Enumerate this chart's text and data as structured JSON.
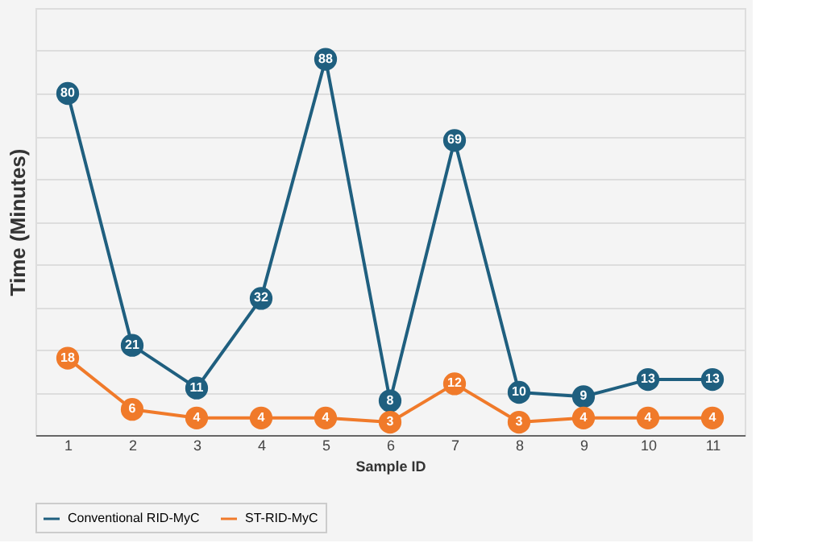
{
  "chart_data": {
    "type": "line",
    "xlabel": "Sample ID",
    "ylabel": "Time (Minutes)",
    "categories": [
      "1",
      "2",
      "3",
      "4",
      "5",
      "6",
      "7",
      "8",
      "9",
      "10",
      "11"
    ],
    "series": [
      {
        "name": "Conventional RID-MyC",
        "color": "#1f5f7f",
        "values": [
          80,
          21,
          11,
          32,
          88,
          8,
          69,
          10,
          9,
          13,
          13
        ]
      },
      {
        "name": "ST-RID-MyC",
        "color": "#f07a2a",
        "values": [
          18,
          6,
          4,
          4,
          4,
          3,
          12,
          3,
          4,
          4,
          4
        ]
      }
    ],
    "ylim": [
      0,
      100
    ],
    "yticks": [
      {
        "value": 0,
        "label": null
      },
      {
        "value": 10,
        "label": null
      },
      {
        "value": 20,
        "label": null
      },
      {
        "value": 30,
        "label": null
      },
      {
        "value": 40,
        "label": null
      },
      {
        "value": 50,
        "label": null
      },
      {
        "value": 60,
        "label": null
      },
      {
        "value": 70,
        "label": null
      },
      {
        "value": 80,
        "label": null
      },
      {
        "value": 90,
        "label": null
      },
      {
        "value": 100,
        "label": null
      }
    ],
    "tick_labels": "x",
    "grid": "y",
    "legend": "bottom",
    "marker": "circle",
    "line_style": "solid",
    "data_labels": true
  }
}
